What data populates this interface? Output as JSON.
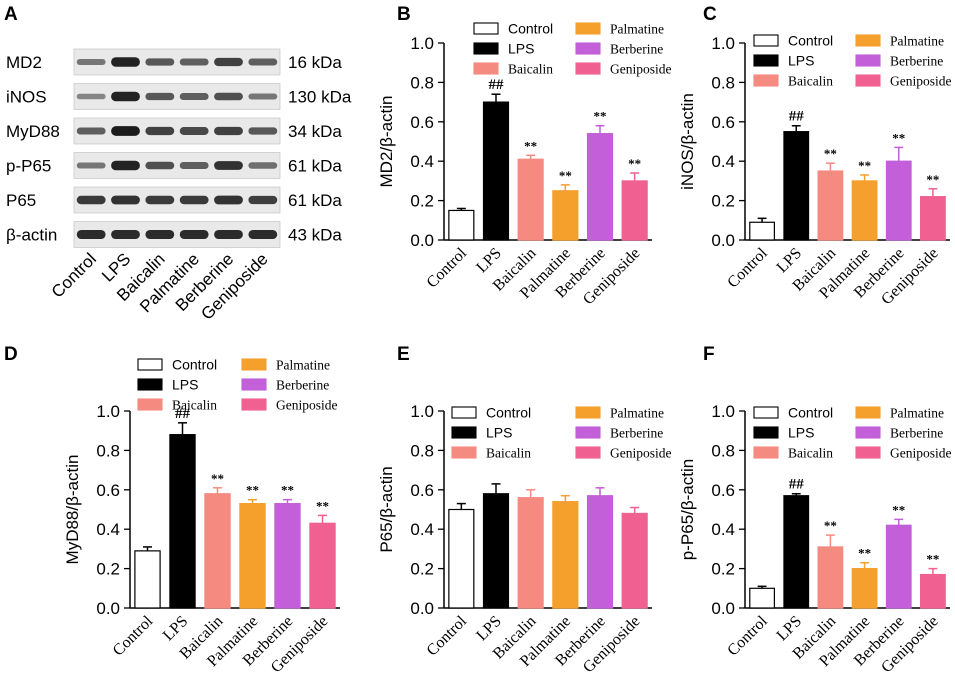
{
  "panel_letters": [
    "A",
    "B",
    "C",
    "D",
    "E",
    "F"
  ],
  "western_blot": {
    "rows": [
      {
        "protein": "MD2",
        "mw": "16 kDa",
        "intensity": [
          0.35,
          0.9,
          0.55,
          0.5,
          0.7,
          0.5
        ]
      },
      {
        "protein": "iNOS",
        "mw": "130 kDa",
        "intensity": [
          0.25,
          0.9,
          0.55,
          0.5,
          0.6,
          0.35
        ]
      },
      {
        "protein": "MyD88",
        "mw": "34 kDa",
        "intensity": [
          0.5,
          0.95,
          0.7,
          0.65,
          0.7,
          0.55
        ]
      },
      {
        "protein": "p-P65",
        "mw": "61 kDa",
        "intensity": [
          0.35,
          0.9,
          0.6,
          0.5,
          0.8,
          0.4
        ]
      },
      {
        "protein": "P65",
        "mw": "61 kDa",
        "intensity": [
          0.75,
          0.8,
          0.75,
          0.75,
          0.8,
          0.72
        ]
      },
      {
        "protein": "β-actin",
        "mw": "43 kDa",
        "intensity": [
          0.85,
          0.85,
          0.85,
          0.85,
          0.85,
          0.85
        ]
      }
    ],
    "lanes": [
      "Control",
      "LPS",
      "Baicalin",
      "Palmatine",
      "Berberine",
      "Geniposide"
    ]
  },
  "legend": {
    "col1": [
      "Control",
      "LPS",
      "Baicalin"
    ],
    "col2": [
      "Palmatine",
      "Berberine",
      "Geniposide"
    ]
  },
  "colors": {
    "Control": "#ffffff",
    "LPS": "#000000",
    "Baicalin": "#f58a80",
    "Palmatine": "#f5a02c",
    "Berberine": "#c35fd8",
    "Geniposide": "#f06090"
  },
  "chart_data": [
    {
      "panel": "B",
      "type": "bar",
      "ylabel": "MD2/β-actin",
      "ylim": [
        0,
        1.0
      ],
      "yticks": [
        "0.0",
        "0.2",
        "0.4",
        "0.6",
        "0.8",
        "1.0"
      ],
      "categories": [
        "Control",
        "LPS",
        "Baicalin",
        "Palmatine",
        "Berberine",
        "Geniposide"
      ],
      "values": [
        0.15,
        0.7,
        0.41,
        0.25,
        0.54,
        0.3
      ],
      "errors": [
        0.01,
        0.04,
        0.02,
        0.03,
        0.04,
        0.04
      ],
      "annotations": [
        "",
        "##",
        "**",
        "**",
        "**",
        "**"
      ]
    },
    {
      "panel": "C",
      "type": "bar",
      "ylabel": "iNOS/β-actin",
      "ylim": [
        0,
        1.0
      ],
      "yticks": [
        "0.0",
        "0.2",
        "0.4",
        "0.6",
        "0.8",
        "1.0"
      ],
      "categories": [
        "Control",
        "LPS",
        "Baicalin",
        "Palmatine",
        "Berberine",
        "Geniposide"
      ],
      "values": [
        0.09,
        0.55,
        0.35,
        0.3,
        0.4,
        0.22
      ],
      "errors": [
        0.02,
        0.03,
        0.04,
        0.03,
        0.07,
        0.04
      ],
      "annotations": [
        "",
        "##",
        "**",
        "**",
        "**",
        "**"
      ]
    },
    {
      "panel": "D",
      "type": "bar",
      "ylabel": "MyD88/β-actin",
      "ylim": [
        0,
        1.0
      ],
      "yticks": [
        "0.0",
        "0.2",
        "0.4",
        "0.6",
        "0.8",
        "1.0"
      ],
      "categories": [
        "Control",
        "LPS",
        "Baicalin",
        "Palmatine",
        "Berberine",
        "Geniposide"
      ],
      "values": [
        0.29,
        0.88,
        0.58,
        0.53,
        0.53,
        0.43
      ],
      "errors": [
        0.02,
        0.06,
        0.03,
        0.02,
        0.02,
        0.04
      ],
      "annotations": [
        "",
        "##",
        "**",
        "**",
        "**",
        "**"
      ]
    },
    {
      "panel": "E",
      "type": "bar",
      "ylabel": "P65/β-actin",
      "ylim": [
        0,
        1.0
      ],
      "yticks": [
        "0.0",
        "0.2",
        "0.4",
        "0.6",
        "0.8",
        "1.0"
      ],
      "categories": [
        "Control",
        "LPS",
        "Baicalin",
        "Palmatine",
        "Berberine",
        "Geniposide"
      ],
      "values": [
        0.5,
        0.58,
        0.56,
        0.54,
        0.57,
        0.48
      ],
      "errors": [
        0.03,
        0.05,
        0.04,
        0.03,
        0.04,
        0.03
      ],
      "annotations": [
        "",
        "",
        "",
        "",
        "",
        ""
      ]
    },
    {
      "panel": "F",
      "type": "bar",
      "ylabel": "p-P65/β-actin",
      "ylim": [
        0,
        1.0
      ],
      "yticks": [
        "0.0",
        "0.2",
        "0.4",
        "0.6",
        "0.8",
        "1.0"
      ],
      "categories": [
        "Control",
        "LPS",
        "Baicalin",
        "Palmatine",
        "Berberine",
        "Geniposide"
      ],
      "values": [
        0.1,
        0.57,
        0.31,
        0.2,
        0.42,
        0.17
      ],
      "errors": [
        0.01,
        0.01,
        0.06,
        0.03,
        0.03,
        0.03
      ],
      "annotations": [
        "",
        "##",
        "**",
        "**",
        "**",
        "**"
      ]
    }
  ]
}
